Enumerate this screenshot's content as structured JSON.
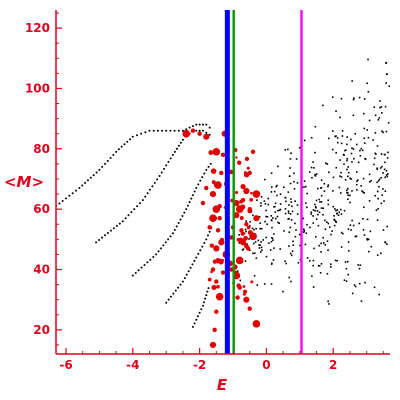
{
  "chart_data": {
    "type": "scatter",
    "title": "",
    "xlabel": "E",
    "ylabel": "<M>",
    "xlim": [
      -6.3,
      3.7
    ],
    "ylim": [
      12,
      126
    ],
    "x_ticks": [
      -6,
      -4,
      -2,
      0,
      2
    ],
    "y_ticks": [
      20,
      40,
      60,
      80,
      100,
      120
    ],
    "grid": false,
    "legend": "none",
    "colors": {
      "axes": "#e0001b",
      "black_series": "#000000",
      "red_series": "#e00000",
      "blue_line": "#0000ff",
      "green_line": "#009900",
      "magenta_line": "#ff00ff"
    },
    "vertical_lines": [
      {
        "x": -1.17,
        "color": "#0000ff",
        "width": "thick"
      },
      {
        "x": -0.98,
        "color": "#009900",
        "width": "medium"
      },
      {
        "x": 1.05,
        "color": "#ff00ff",
        "width": "medium"
      }
    ],
    "series": [
      {
        "marker": "small-dot",
        "color": "#000000",
        "curves": [
          {
            "points": [
              [
                -6.3,
                61
              ],
              [
                -5.6,
                67
              ],
              [
                -5.0,
                73
              ],
              [
                -4.5,
                79
              ],
              [
                -4.0,
                84
              ],
              [
                -3.5,
                86
              ],
              [
                -3.0,
                86
              ],
              [
                -2.5,
                86
              ],
              [
                -2.1,
                88
              ],
              [
                -1.8,
                88
              ],
              [
                -1.6,
                86
              ]
            ]
          },
          {
            "points": [
              [
                -5.1,
                49
              ],
              [
                -4.3,
                56
              ],
              [
                -3.7,
                63
              ],
              [
                -3.2,
                71
              ],
              [
                -2.8,
                78
              ],
              [
                -2.5,
                83
              ],
              [
                -2.2,
                86
              ],
              [
                -1.9,
                86
              ],
              [
                -1.6,
                84
              ]
            ]
          },
          {
            "points": [
              [
                -4.0,
                38
              ],
              [
                -3.3,
                45
              ],
              [
                -2.8,
                52
              ],
              [
                -2.4,
                60
              ],
              [
                -2.1,
                67
              ],
              [
                -1.8,
                73
              ],
              [
                -1.6,
                76
              ]
            ]
          },
          {
            "points": [
              [
                -3.0,
                29
              ],
              [
                -2.5,
                36
              ],
              [
                -2.1,
                44
              ],
              [
                -1.8,
                50
              ],
              [
                -1.6,
                55
              ]
            ]
          },
          {
            "points": [
              [
                -2.2,
                21
              ],
              [
                -1.9,
                28
              ],
              [
                -1.7,
                35
              ]
            ]
          }
        ],
        "cloud": {
          "x_range": [
            -1.0,
            3.7
          ],
          "y_range": [
            25,
            125
          ],
          "center": [
            1.8,
            60
          ]
        }
      },
      {
        "marker": "filled-circle",
        "color": "#e00000",
        "points": [
          [
            -2.4,
            85
          ],
          [
            -2.2,
            86
          ],
          [
            -2.0,
            85
          ],
          [
            -1.8,
            84
          ],
          [
            -1.5,
            79
          ],
          [
            -1.3,
            78
          ],
          [
            -1.25,
            85
          ],
          [
            -1.35,
            72
          ],
          [
            -1.45,
            68
          ],
          [
            -1.6,
            65
          ],
          [
            -1.8,
            67
          ],
          [
            -1.9,
            62
          ],
          [
            -1.5,
            60
          ],
          [
            -1.4,
            57
          ],
          [
            -1.45,
            53
          ],
          [
            -1.35,
            49
          ],
          [
            -1.2,
            45
          ],
          [
            -1.3,
            39
          ],
          [
            -1.1,
            42
          ],
          [
            -1.05,
            40
          ],
          [
            -0.8,
            43
          ],
          [
            -0.7,
            49
          ],
          [
            -0.75,
            53
          ],
          [
            -0.6,
            55
          ],
          [
            -0.8,
            60
          ],
          [
            -0.7,
            63
          ],
          [
            -0.5,
            60
          ],
          [
            -0.3,
            57
          ],
          [
            -0.4,
            51
          ],
          [
            -0.55,
            47
          ],
          [
            -0.9,
            58
          ],
          [
            -1.0,
            54
          ],
          [
            -1.6,
            57
          ],
          [
            -1.5,
            47
          ],
          [
            -1.6,
            40
          ],
          [
            -1.5,
            36
          ],
          [
            -1.4,
            31
          ],
          [
            -1.5,
            26
          ],
          [
            -1.55,
            20
          ],
          [
            -1.6,
            15
          ],
          [
            -0.9,
            38
          ],
          [
            -0.8,
            34
          ],
          [
            -0.6,
            30
          ],
          [
            -0.5,
            27
          ],
          [
            -0.3,
            22
          ],
          [
            -0.6,
            66
          ],
          [
            -0.5,
            72
          ],
          [
            -0.4,
            79
          ],
          [
            -0.3,
            65
          ],
          [
            -1.7,
            54
          ],
          [
            -1.4,
            61
          ],
          [
            -0.9,
            62
          ]
        ]
      }
    ]
  }
}
